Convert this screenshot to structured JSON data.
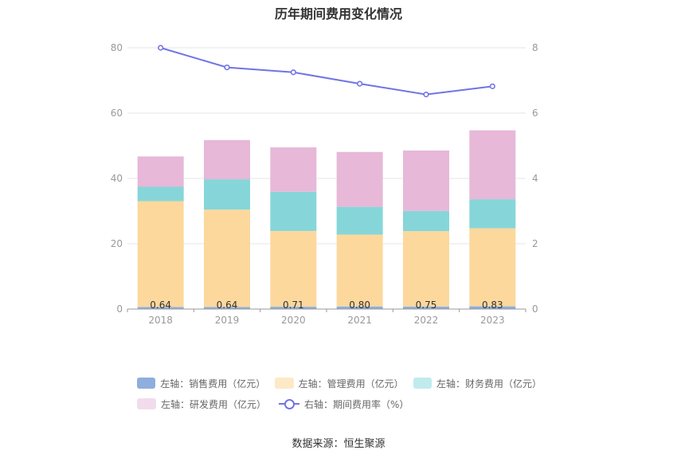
{
  "title": "历年期间费用变化情况",
  "source": "数据来源：恒生聚源",
  "colors": {
    "sales": "#8eaedd",
    "admin": "#fdd89c",
    "finance": "#86d6d9",
    "rnd": "#e7b8d8",
    "rate": "#7074e6",
    "admin_legend": "#fde9c6",
    "finance_legend": "#c0ebec",
    "rnd_legend": "#f2dcec"
  },
  "chart_data": {
    "type": "bar",
    "stacked": true,
    "categories": [
      "2018",
      "2019",
      "2020",
      "2021",
      "2022",
      "2023"
    ],
    "series": [
      {
        "key": "sales",
        "name": "左轴：销售费用（亿元）",
        "axis": "left",
        "values": [
          0.64,
          0.64,
          0.71,
          0.8,
          0.75,
          0.83
        ]
      },
      {
        "key": "admin",
        "name": "左轴：管理费用（亿元）",
        "axis": "left",
        "values": [
          32.4,
          29.8,
          23.2,
          22.0,
          23.1,
          23.9
        ]
      },
      {
        "key": "finance",
        "name": "左轴：财务费用（亿元）",
        "axis": "left",
        "values": [
          4.4,
          9.3,
          12.0,
          8.5,
          6.2,
          8.9
        ]
      },
      {
        "key": "rnd",
        "name": "左轴：研发费用（亿元）",
        "axis": "left",
        "values": [
          9.3,
          12.0,
          13.6,
          16.8,
          18.5,
          21.1
        ]
      },
      {
        "key": "rate",
        "name": "右轴：期间费用率（%）",
        "axis": "right",
        "type": "line",
        "values": [
          8.0,
          7.4,
          7.25,
          6.9,
          6.57,
          6.82
        ]
      }
    ],
    "data_labels": [
      "0.64",
      "0.64",
      "0.71",
      "0.80",
      "0.75",
      "0.83"
    ],
    "left_axis": {
      "min": 0,
      "max": 80,
      "ticks": [
        "0",
        "20",
        "40",
        "60",
        "80"
      ]
    },
    "right_axis": {
      "min": 0,
      "max": 8,
      "ticks": [
        "0",
        "2",
        "4",
        "6",
        "8"
      ]
    },
    "grid": true,
    "legend_position": "bottom"
  }
}
